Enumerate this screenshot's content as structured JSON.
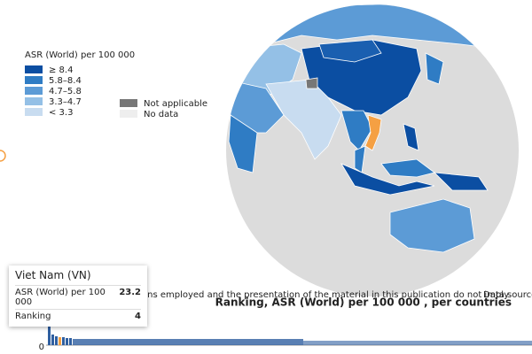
{
  "legend": {
    "title": "ASR (World) per 100 000",
    "items": [
      "≥ 8.4",
      "5.8–8.4",
      "4.7–5.8",
      "3.3–4.7",
      "< 3.3"
    ],
    "other": [
      "Not applicable",
      "No data"
    ]
  },
  "disclaimer": "ons employed and the presentation of the material in this publication do not imply",
  "data_source": "Data source:",
  "tooltip": {
    "title": "Viet Nam (VN)",
    "rows": [
      [
        "ASR (World) per 100 000",
        23.2
      ],
      [
        "Ranking",
        4
      ]
    ]
  },
  "ranking_chart": {
    "title": "Ranking, ASR (World) per 100 000 , per countries",
    "y_label": "0"
  }
}
